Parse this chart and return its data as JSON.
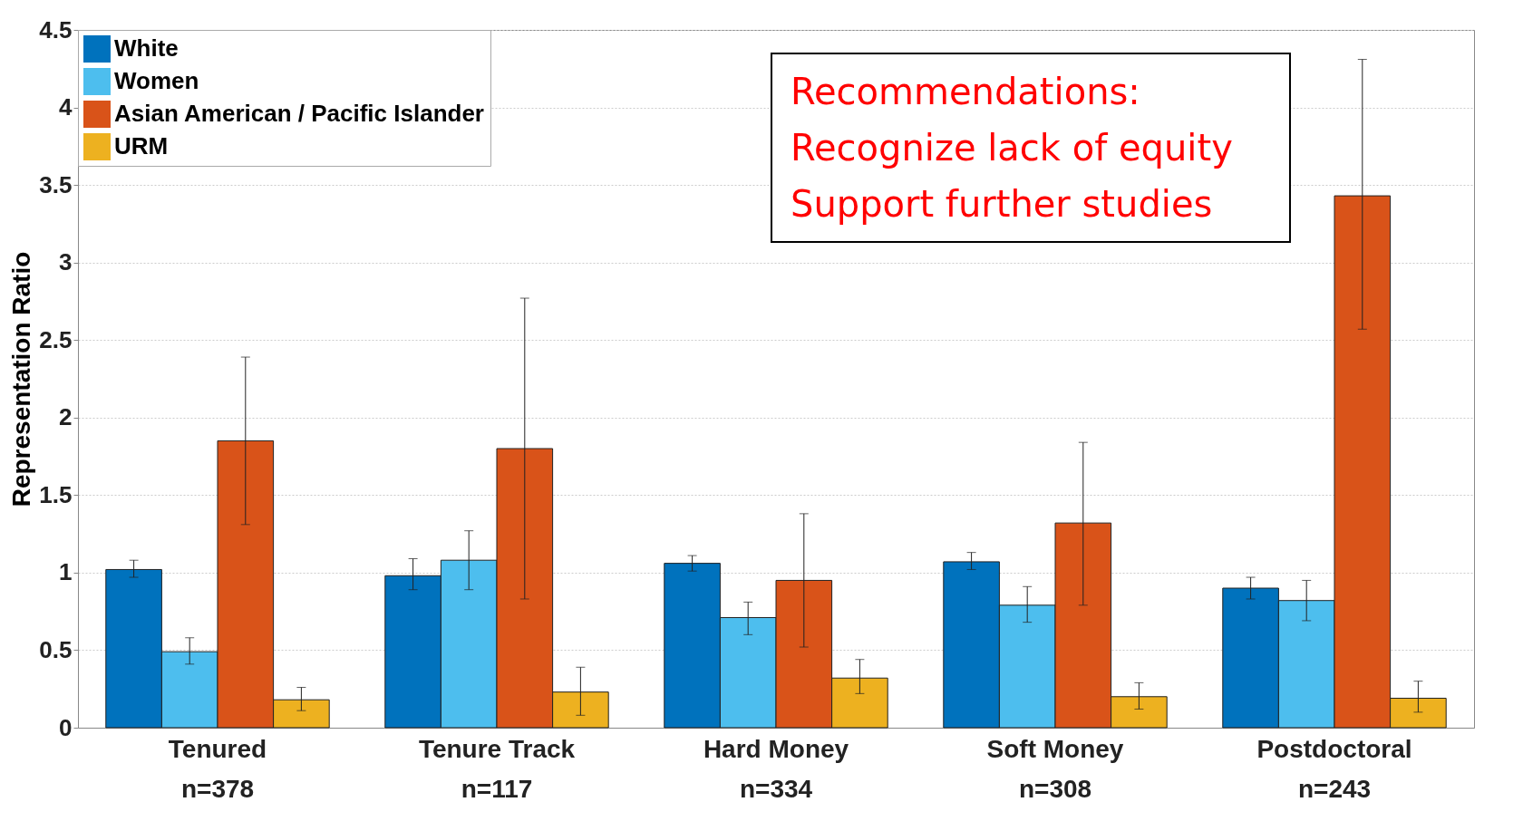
{
  "chart_data": {
    "type": "bar",
    "ylabel": "Representation Ratio",
    "categories": [
      "Tenured\nn=378",
      "Tenure Track\nn=117",
      "Hard Money\nn=334",
      "Soft Money\nn=308",
      "Postdoctoral\nn=243"
    ],
    "series": [
      {
        "name": "White",
        "color": "#0072bd",
        "values": [
          1.02,
          0.98,
          1.06,
          1.07,
          0.9
        ],
        "errors": [
          [
            0.97,
            1.08
          ],
          [
            0.89,
            1.09
          ],
          [
            1.01,
            1.11
          ],
          [
            1.02,
            1.13
          ],
          [
            0.83,
            0.97
          ]
        ]
      },
      {
        "name": "Women",
        "color": "#4dbeee",
        "values": [
          0.49,
          1.08,
          0.71,
          0.79,
          0.82
        ],
        "errors": [
          [
            0.41,
            0.58
          ],
          [
            0.89,
            1.27
          ],
          [
            0.6,
            0.81
          ],
          [
            0.68,
            0.91
          ],
          [
            0.69,
            0.95
          ]
        ]
      },
      {
        "name": "Asian American / Pacific Islander",
        "color": "#d95319",
        "values": [
          1.85,
          1.8,
          0.95,
          1.32,
          3.43
        ],
        "errors": [
          [
            1.31,
            2.39
          ],
          [
            0.83,
            2.77
          ],
          [
            0.52,
            1.38
          ],
          [
            0.79,
            1.84
          ],
          [
            2.57,
            4.31
          ]
        ]
      },
      {
        "name": "URM",
        "color": "#edb120",
        "values": [
          0.18,
          0.23,
          0.32,
          0.2,
          0.19
        ],
        "errors": [
          [
            0.11,
            0.26
          ],
          [
            0.08,
            0.39
          ],
          [
            0.22,
            0.44
          ],
          [
            0.12,
            0.29
          ],
          [
            0.1,
            0.3
          ]
        ]
      }
    ],
    "ylim": [
      0,
      4.5
    ],
    "yticks": [
      0,
      0.5,
      1,
      1.5,
      2,
      2.5,
      3,
      3.5,
      4,
      4.5
    ],
    "grid": true,
    "legend": "top left",
    "annotations": [
      "Recommendations:",
      "Recognize lack of equity",
      "Support further studies"
    ]
  }
}
